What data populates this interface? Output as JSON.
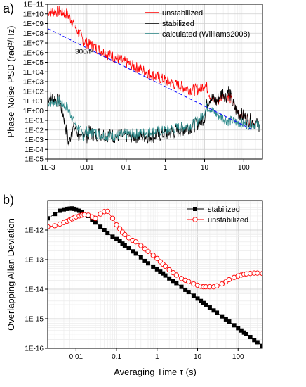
{
  "panels": {
    "a": "a)",
    "b": "b)"
  },
  "chart_data": [
    {
      "type": "line",
      "panel": "a",
      "x_scale": "log",
      "y_scale": "log",
      "xlim": [
        0.001,
        300
      ],
      "ylim": [
        1e-05,
        100000000000.0
      ],
      "xlabel": "",
      "ylabel": "Phase Noise PSD (rad²/Hz)",
      "grid": true,
      "legend_position": "top-right",
      "x_ticks": [
        {
          "value": 0.001,
          "label": "1E-3"
        },
        {
          "value": 0.01,
          "label": "0.01"
        },
        {
          "value": 0.1,
          "label": "0.1"
        },
        {
          "value": 1,
          "label": "1"
        },
        {
          "value": 10,
          "label": "10"
        },
        {
          "value": 100,
          "label": "100"
        }
      ],
      "y_ticks": [
        {
          "value": 1e-05,
          "label": "1E-05"
        },
        {
          "value": 0.0001,
          "label": "1E-04"
        },
        {
          "value": 0.001,
          "label": "1E-03"
        },
        {
          "value": 0.01,
          "label": "1E-02"
        },
        {
          "value": 0.1,
          "label": "1E-01"
        },
        {
          "value": 1.0,
          "label": "1E+00"
        },
        {
          "value": 10.0,
          "label": "1E+01"
        },
        {
          "value": 100.0,
          "label": "1E+02"
        },
        {
          "value": 1000.0,
          "label": "1E+03"
        },
        {
          "value": 10000.0,
          "label": "1E+04"
        },
        {
          "value": 100000.0,
          "label": "1E+05"
        },
        {
          "value": 1000000.0,
          "label": "1E+06"
        },
        {
          "value": 10000000.0,
          "label": "1E+07"
        },
        {
          "value": 100000000.0,
          "label": "1E+08"
        },
        {
          "value": 1000000000.0,
          "label": "1E+09"
        },
        {
          "value": 10000000000.0,
          "label": "1E+10"
        },
        {
          "value": 100000000000.0,
          "label": "1E+11"
        }
      ],
      "annotation": {
        "text": "300/f²",
        "x": 0.005,
        "y": 2000000.0,
        "color": "#1a1aff"
      },
      "series": [
        {
          "name": "unstabilized",
          "color": "#ff0000",
          "noise": 0.55,
          "x": [
            0.001,
            0.002,
            0.003,
            0.004,
            0.005,
            0.006,
            0.007,
            0.008,
            0.01,
            0.015,
            0.02,
            0.03,
            0.05,
            0.1,
            0.2,
            0.5,
            1,
            2,
            5,
            8,
            10,
            12,
            14,
            16,
            20,
            25,
            30,
            35,
            40,
            45,
            50,
            60,
            80,
            100,
            150,
            200,
            250
          ],
          "y": [
            20000000000.0,
            20000000000.0,
            12000000000.0,
            3000000000.0,
            500000000.0,
            150000000.0,
            60000000.0,
            20000000.0,
            10000000.0,
            5000000.0,
            2500000.0,
            1000000.0,
            400000.0,
            100000.0,
            30000.0,
            5000.0,
            1500.0,
            500.0,
            150.0,
            200.0,
            800.0,
            200.0,
            40,
            15,
            10,
            20,
            60,
            30,
            40,
            20,
            8,
            2,
            0.5,
            0.3,
            0.1,
            0.05,
            0.04
          ]
        },
        {
          "name": "stabilized",
          "color": "#000000",
          "noise": 0.7,
          "x": [
            0.001,
            0.0015,
            0.002,
            0.0025,
            0.003,
            0.0035,
            0.004,
            0.005,
            0.006,
            0.007,
            0.008,
            0.009,
            0.01,
            0.012,
            0.015,
            0.02,
            0.03,
            0.05,
            0.1,
            0.2,
            0.5,
            1,
            2,
            5,
            8,
            10,
            12,
            14,
            16,
            20,
            25,
            30,
            35,
            40,
            45,
            50,
            60,
            80,
            100,
            150,
            200,
            250
          ],
          "y": [
            30,
            20,
            10,
            0.5,
            0.01,
            0.0003,
            0.01,
            0.02,
            0.005,
            0.0005,
            0.01,
            0.005,
            0.003,
            0.008,
            0.003,
            0.005,
            0.004,
            0.003,
            0.003,
            0.003,
            0.003,
            0.005,
            0.01,
            0.03,
            0.1,
            0.3,
            10,
            30,
            20,
            10,
            50,
            100,
            30,
            200,
            50,
            10,
            2,
            0.5,
            0.3,
            0.1,
            0.05,
            0.04
          ]
        },
        {
          "name": "calculated (Williams2008)",
          "color": "#2e8b8b",
          "noise": 0.5,
          "x": [
            0.001,
            0.002,
            0.003,
            0.004,
            0.005,
            0.006,
            0.008,
            0.01,
            0.012,
            0.015,
            0.02,
            0.03,
            0.05,
            0.1,
            0.2,
            0.5,
            1,
            2,
            5,
            8,
            10,
            12,
            14,
            16,
            20,
            25,
            30,
            40,
            50,
            60,
            80,
            100,
            150,
            200,
            250
          ],
          "y": [
            8,
            10,
            3,
            0.4,
            0.05,
            0.02,
            0.003,
            0.01,
            0.004,
            0.008,
            0.004,
            0.003,
            0.003,
            0.004,
            0.005,
            0.008,
            0.01,
            0.02,
            0.04,
            0.2,
            1,
            3,
            2,
            1,
            0.5,
            0.3,
            0.2,
            0.1,
            0.1,
            0.08,
            0.06,
            0.05,
            0.04,
            0.04,
            0.04
          ]
        },
        {
          "name": "",
          "color": "#1a1aff",
          "dashed": true,
          "x": [
            0.001,
            0.01,
            0.1,
            1,
            10,
            100,
            150
          ],
          "y": [
            300000000.0,
            3000000.0,
            30000.0,
            300,
            3,
            0.03,
            0.013
          ]
        }
      ]
    },
    {
      "type": "scatter",
      "panel": "b",
      "x_scale": "log",
      "y_scale": "log",
      "xlim": [
        0.002,
        400
      ],
      "ylim": [
        1e-16,
        1e-11
      ],
      "xlabel": "Averaging Time τ (s)",
      "ylabel": "Overlapping Allan Deviation",
      "grid": true,
      "legend_position": "top-right",
      "x_ticks": [
        {
          "value": 0.01,
          "label": "0.01"
        },
        {
          "value": 0.1,
          "label": "0.1"
        },
        {
          "value": 1,
          "label": "1"
        },
        {
          "value": 10,
          "label": "10"
        },
        {
          "value": 100,
          "label": "100"
        }
      ],
      "y_ticks": [
        {
          "value": 1e-16,
          "label": "1E-16"
        },
        {
          "value": 1e-15,
          "label": "1E-15"
        },
        {
          "value": 1e-14,
          "label": "1E-14"
        },
        {
          "value": 1e-13,
          "label": "1E-13"
        },
        {
          "value": 1e-12,
          "label": "1E-12"
        }
      ],
      "series": [
        {
          "name": "stabilized",
          "color": "#000000",
          "marker": "square-filled",
          "x": [
            0.002,
            0.003,
            0.004,
            0.005,
            0.006,
            0.007,
            0.008,
            0.009,
            0.01,
            0.012,
            0.014,
            0.016,
            0.02,
            0.025,
            0.03,
            0.04,
            0.05,
            0.06,
            0.08,
            0.1,
            0.12,
            0.14,
            0.16,
            0.2,
            0.25,
            0.3,
            0.4,
            0.5,
            0.6,
            0.8,
            1,
            1.2,
            1.4,
            1.6,
            2,
            2.5,
            3,
            4,
            5,
            6,
            8,
            10,
            12,
            14,
            16,
            20,
            25,
            30,
            40,
            50,
            60,
            80,
            100,
            120,
            140,
            160,
            200,
            250,
            300,
            400
          ],
          "y": [
            2.5e-12,
            3.5e-12,
            4.5e-12,
            5e-12,
            5.2e-12,
            5.3e-12,
            5.4e-12,
            5.2e-12,
            5e-12,
            4.5e-12,
            4e-12,
            3.5e-12,
            3e-12,
            2.2e-12,
            1.8e-12,
            1.3e-12,
            1e-12,
            8e-13,
            6e-13,
            5e-13,
            4.2e-13,
            3.5e-13,
            3e-13,
            2.4e-13,
            1.9e-13,
            1.6e-13,
            1.2e-13,
            9e-14,
            7.5e-14,
            5.8e-14,
            4.7e-14,
            3.9e-14,
            3.4e-14,
            2.9e-14,
            2.3e-14,
            1.9e-14,
            1.6e-14,
            1.2e-14,
            9.5e-15,
            8e-15,
            6e-15,
            4.8e-15,
            4e-15,
            3.4e-15,
            3e-15,
            2.4e-15,
            1.9e-15,
            1.6e-15,
            1.2e-15,
            9.5e-16,
            8e-16,
            6e-16,
            4.8e-16,
            4e-16,
            3.4e-16,
            3e-16,
            2.4e-16,
            1.9e-16,
            1.6e-16,
            1.2e-16
          ]
        },
        {
          "name": "unstabilized",
          "color": "#ff0000",
          "marker": "circle-open",
          "x": [
            0.002,
            0.003,
            0.004,
            0.005,
            0.006,
            0.007,
            0.008,
            0.009,
            0.01,
            0.012,
            0.014,
            0.016,
            0.02,
            0.025,
            0.03,
            0.04,
            0.05,
            0.06,
            0.08,
            0.1,
            0.12,
            0.14,
            0.16,
            0.2,
            0.25,
            0.3,
            0.4,
            0.5,
            0.6,
            0.8,
            1,
            1.2,
            1.4,
            1.6,
            2,
            2.5,
            3,
            4,
            5,
            6,
            8,
            10,
            12,
            14,
            16,
            20,
            25,
            30,
            40,
            50,
            60,
            80,
            100,
            120,
            140,
            160,
            200,
            250,
            300,
            400
          ],
          "y": [
            1.3e-12,
            1.4e-12,
            1.6e-12,
            1.8e-12,
            2e-12,
            2.2e-12,
            2.4e-12,
            2.6e-12,
            2.8e-12,
            3e-12,
            3.2e-12,
            3.3e-12,
            3.2e-12,
            2.8e-12,
            2.5e-12,
            3.5e-12,
            4.2e-12,
            4.3e-12,
            2.5e-12,
            1.5e-12,
            1.1e-12,
            8.5e-13,
            7e-13,
            5.5e-13,
            4.5e-13,
            4e-13,
            3e-13,
            2.3e-13,
            1.9e-13,
            1.4e-13,
            1.1e-13,
            8.5e-14,
            7e-14,
            6e-14,
            4.5e-14,
            3.6e-14,
            3e-14,
            2.3e-14,
            2e-14,
            1.8e-14,
            1.5e-14,
            1.35e-14,
            1.25e-14,
            1.2e-14,
            1.2e-14,
            1.2e-14,
            1.2e-14,
            1.3e-14,
            1.5e-14,
            1.8e-14,
            2.1e-14,
            2.5e-14,
            2.8e-14,
            3e-14,
            3.2e-14,
            3.3e-14,
            3.4e-14,
            3.5e-14,
            3.5e-14,
            3.4e-14
          ]
        }
      ]
    }
  ]
}
